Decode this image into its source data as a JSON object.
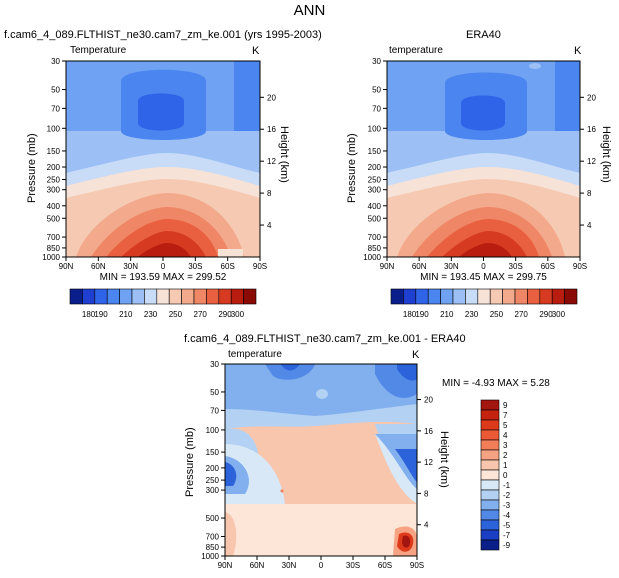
{
  "main_title": "ANN",
  "panels": {
    "model": {
      "title": "f.cam6_4_089.FLTHIST_ne30.cam7_zm_ke.001 (yrs 1995-2003)",
      "field": "Temperature",
      "units": "K",
      "ylabel": "Pressure (mb)",
      "y2label": "Height (km)",
      "min_max": "MIN = 193.59  MAX = 299.52"
    },
    "obs": {
      "title": "ERA40",
      "field": "temperature",
      "units": "K",
      "ylabel": "Pressure (mb)",
      "y2label": "Height (km)",
      "min_max": "MIN = 193.45  MAX = 299.75"
    },
    "diff": {
      "title": "f.cam6_4_089.FLTHIST_ne30.cam7_zm_ke.001 - ERA40",
      "field": "temperature",
      "units": "K",
      "ylabel": "Pressure (mb)",
      "y2label": "Height (km)",
      "min_max": "MIN = -4.93  MAX =  5.28"
    }
  },
  "chart_data": [
    {
      "type": "heatmap",
      "title": "f.cam6_4_089.FLTHIST_ne30.cam7_zm_ke.001 (yrs 1995-2003)",
      "xlabel": "",
      "ylabel": "Pressure (mb)",
      "y2label": "Height (km)",
      "x_ticks": [
        "90N",
        "60N",
        "30N",
        "0",
        "30S",
        "60S",
        "90S"
      ],
      "y_ticks": [
        "30",
        "50",
        "70",
        "100",
        "150",
        "200",
        "250",
        "300",
        "400",
        "500",
        "700",
        "850",
        "1000"
      ],
      "y2_ticks": [
        "20",
        "16",
        "12",
        "8",
        "4"
      ],
      "colorbar_ticks": [
        "180",
        "190",
        "210",
        "230",
        "250",
        "270",
        "290",
        "300"
      ],
      "colorbar_colors": [
        "#0a1e8c",
        "#1f3fd0",
        "#2f63e8",
        "#4a85f0",
        "#6fa2f2",
        "#9cc0f5",
        "#c8dcf8",
        "#f6e2d6",
        "#f6c9b3",
        "#f3a98b",
        "#ef8665",
        "#e8603f",
        "#d63a20",
        "#b81d10",
        "#8a0a06"
      ],
      "min": 193.59,
      "max": 299.52
    },
    {
      "type": "heatmap",
      "title": "ERA40",
      "xlabel": "",
      "ylabel": "Pressure (mb)",
      "y2label": "Height (km)",
      "x_ticks": [
        "90N",
        "60N",
        "30N",
        "0",
        "30S",
        "60S",
        "90S"
      ],
      "y_ticks": [
        "30",
        "50",
        "70",
        "100",
        "150",
        "200",
        "250",
        "300",
        "400",
        "500",
        "700",
        "850",
        "1000"
      ],
      "y2_ticks": [
        "20",
        "16",
        "12",
        "8",
        "4"
      ],
      "colorbar_ticks": [
        "180",
        "190",
        "210",
        "230",
        "250",
        "270",
        "290",
        "300"
      ],
      "min": 193.45,
      "max": 299.75
    },
    {
      "type": "heatmap",
      "title": "f.cam6_4_089.FLTHIST_ne30.cam7_zm_ke.001 - ERA40",
      "xlabel": "",
      "ylabel": "Pressure (mb)",
      "y2label": "Height (km)",
      "x_ticks": [
        "90N",
        "60N",
        "30N",
        "0",
        "30S",
        "60S",
        "90S"
      ],
      "y_ticks": [
        "30",
        "50",
        "70",
        "100",
        "150",
        "200",
        "250",
        "300",
        "500",
        "700",
        "850",
        "1000"
      ],
      "y2_ticks": [
        "20",
        "16",
        "12",
        "8",
        "4"
      ],
      "colorbar_ticks": [
        "9",
        "7",
        "5",
        "4",
        "3",
        "2",
        "1",
        "0",
        "-1",
        "-2",
        "-3",
        "-4",
        "-5",
        "-7",
        "-9"
      ],
      "colorbar_colors": [
        "#a3150f",
        "#c5220f",
        "#dd3a1c",
        "#ec5a35",
        "#f27d59",
        "#f5a382",
        "#f8c5ad",
        "#fde5d8",
        "#d8e8f7",
        "#b3d1f3",
        "#82afee",
        "#5289e6",
        "#2d63da",
        "#1a3fc3",
        "#0b1f8a"
      ],
      "min": -4.93,
      "max": 5.28
    }
  ]
}
